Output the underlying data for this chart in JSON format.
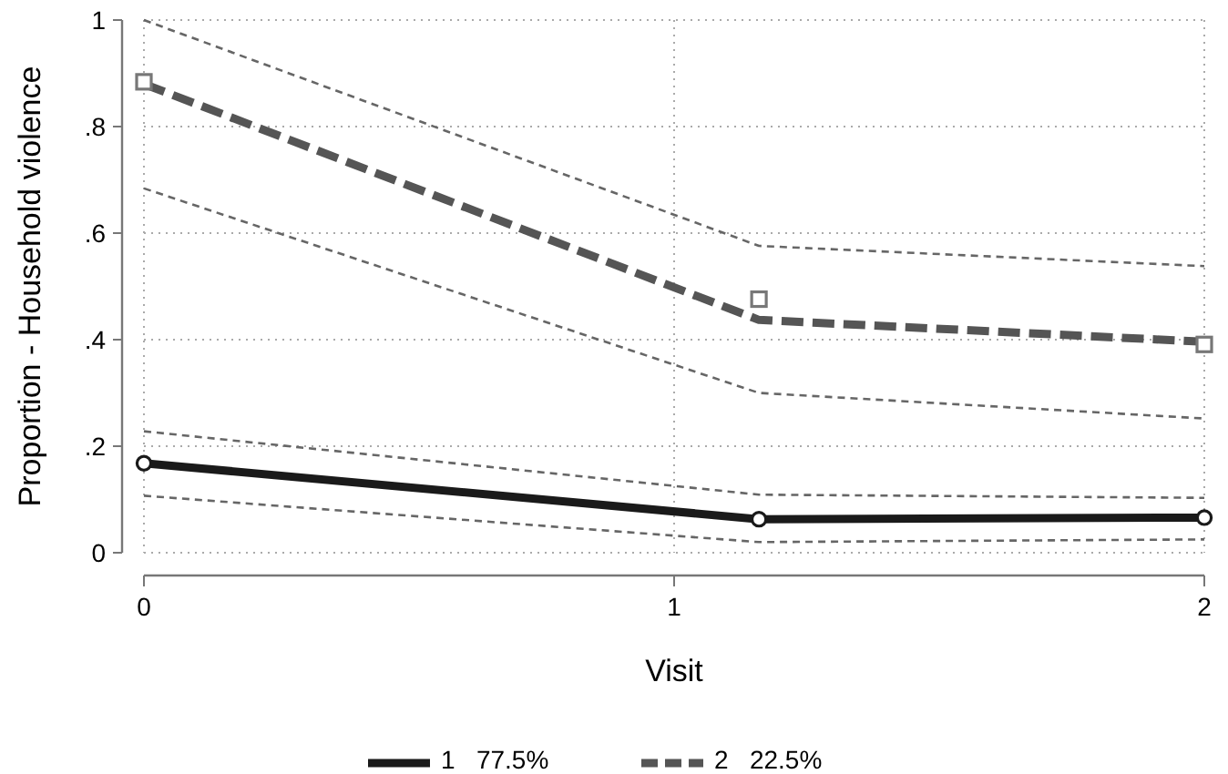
{
  "chart_data": {
    "type": "line",
    "xlabel": "Visit",
    "ylabel": "Proportion - Household violence",
    "xlim": [
      0,
      2
    ],
    "ylim": [
      0,
      1
    ],
    "xticks": [
      0,
      1,
      2
    ],
    "yticks": [
      0,
      {
        "value": 0.2,
        "label": ".2"
      },
      {
        "value": 0.4,
        "label": ".4"
      },
      {
        "value": 0.6,
        "label": ".6"
      },
      {
        "value": 0.8,
        "label": ".8"
      },
      1
    ],
    "grid": true,
    "legend": "bottom",
    "series": [
      {
        "name": "1   77.5%",
        "color": "#1a1a1a",
        "line_style": "solid",
        "marker": "none",
        "x": [
          0,
          1.16,
          2
        ],
        "values": [
          0.168,
          0.063,
          0.066
        ]
      },
      {
        "name": "2   22.5%",
        "color": "#555555",
        "line_style": "dashed",
        "marker": "none",
        "x": [
          0,
          1.16,
          2
        ],
        "values": [
          0.88,
          0.437,
          0.396
        ]
      },
      {
        "color": "#666666",
        "line_style": "dashed",
        "marker": "none",
        "x": [
          0,
          1.16,
          2
        ],
        "values": [
          0.228,
          0.109,
          0.103
        ]
      },
      {
        "color": "#666666",
        "line_style": "dashed",
        "marker": "none",
        "x": [
          0,
          1.16,
          2
        ],
        "values": [
          0.107,
          0.02,
          0.025
        ]
      },
      {
        "color": "#666666",
        "line_style": "dashed",
        "marker": "none",
        "x": [
          0,
          1.16,
          2
        ],
        "values": [
          1.0,
          0.576,
          0.538
        ]
      },
      {
        "color": "#666666",
        "line_style": "dashed",
        "marker": "none",
        "x": [
          0,
          1.16,
          2
        ],
        "values": [
          0.684,
          0.3,
          0.252
        ]
      },
      {
        "type": "scatter",
        "color": "#1a1a1a",
        "marker": "circle",
        "x": [
          0,
          1.16,
          2
        ],
        "values": [
          0.168,
          0.063,
          0.066
        ]
      },
      {
        "type": "scatter",
        "color": "#777777",
        "marker": "square",
        "x": [
          0,
          1.16,
          2
        ],
        "values": [
          0.884,
          0.476,
          0.391
        ]
      }
    ]
  }
}
